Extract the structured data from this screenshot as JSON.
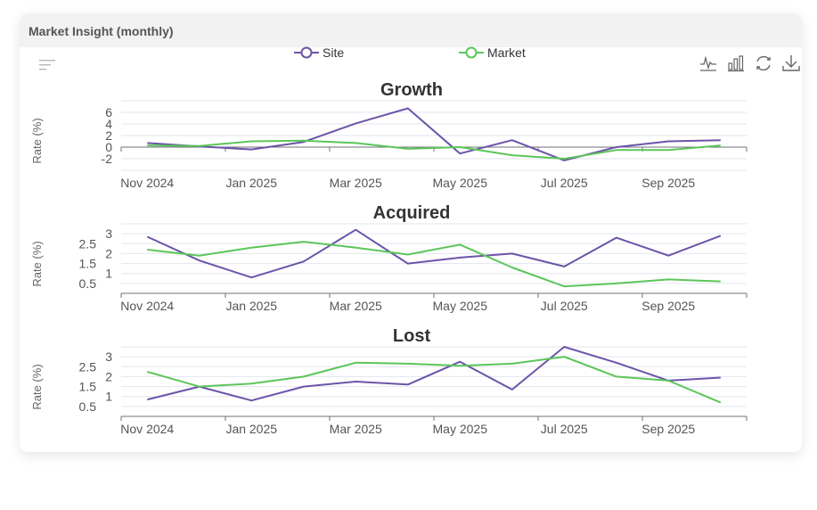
{
  "card": {
    "title": "Market Insight (monthly)"
  },
  "legend": [
    {
      "name": "Site",
      "color": "#6c54a8"
    },
    {
      "name": "Market",
      "color": "#5cc65a"
    }
  ],
  "toolbar": {
    "icons": [
      "line-chart-icon",
      "bar-chart-icon",
      "refresh-icon",
      "download-icon"
    ],
    "menu_icon": "filter-lines-icon"
  },
  "chart_data": [
    {
      "type": "line",
      "title": "Growth",
      "ylabel": "Rate (%)",
      "ylim": [
        -4,
        8
      ],
      "yticks": [
        -2,
        0,
        2,
        4,
        6
      ],
      "ytick_labels": [
        "-2",
        "0",
        "2",
        "4",
        "6"
      ],
      "grid": true,
      "categories": [
        "Nov 2024",
        "Dec 2024",
        "Jan 2025",
        "Feb 2025",
        "Mar 2025",
        "Apr 2025",
        "May 2025",
        "Jun 2025",
        "Jul 2025",
        "Aug 2025",
        "Sep 2025",
        "Oct 2025"
      ],
      "xtick_labels": [
        "Nov 2024",
        "Jan 2025",
        "Mar 2025",
        "May 2025",
        "Jul 2025",
        "Sep 2025"
      ],
      "series": [
        {
          "name": "Site",
          "values": [
            0.7,
            0.1,
            -0.4,
            0.9,
            4.1,
            6.7,
            -1.1,
            1.2,
            -2.3,
            0.0,
            1.0,
            1.2
          ]
        },
        {
          "name": "Market",
          "values": [
            0.3,
            0.2,
            1.0,
            1.1,
            0.7,
            -0.3,
            0.0,
            -1.4,
            -2.0,
            -0.5,
            -0.5,
            0.3
          ]
        }
      ]
    },
    {
      "type": "line",
      "title": "Acquired",
      "ylabel": "Rate (%)",
      "ylim": [
        0,
        3.5
      ],
      "yticks": [
        0.5,
        1,
        1.5,
        2,
        2.5,
        3
      ],
      "ytick_labels": [
        "0.5",
        "1",
        "1.5",
        "2",
        "2.5",
        "3"
      ],
      "grid": true,
      "categories": [
        "Nov 2024",
        "Dec 2024",
        "Jan 2025",
        "Feb 2025",
        "Mar 2025",
        "Apr 2025",
        "May 2025",
        "Jun 2025",
        "Jul 2025",
        "Aug 2025",
        "Sep 2025",
        "Oct 2025"
      ],
      "xtick_labels": [
        "Nov 2024",
        "Jan 2025",
        "Mar 2025",
        "May 2025",
        "Jul 2025",
        "Sep 2025"
      ],
      "series": [
        {
          "name": "Site",
          "values": [
            2.85,
            1.65,
            0.8,
            1.6,
            3.2,
            1.5,
            1.8,
            2.0,
            1.35,
            2.8,
            1.9,
            2.9
          ]
        },
        {
          "name": "Market",
          "values": [
            2.2,
            1.9,
            2.3,
            2.6,
            2.3,
            1.95,
            2.45,
            1.3,
            0.35,
            0.5,
            0.7,
            0.6
          ]
        }
      ]
    },
    {
      "type": "line",
      "title": "Lost",
      "ylabel": "Rate (%)",
      "ylim": [
        0,
        3.5
      ],
      "yticks": [
        0.5,
        1,
        1.5,
        2,
        2.5,
        3
      ],
      "ytick_labels": [
        "0.5",
        "1",
        "1.5",
        "2",
        "2.5",
        "3"
      ],
      "grid": true,
      "categories": [
        "Nov 2024",
        "Dec 2024",
        "Jan 2025",
        "Feb 2025",
        "Mar 2025",
        "Apr 2025",
        "May 2025",
        "Jun 2025",
        "Jul 2025",
        "Aug 2025",
        "Sep 2025",
        "Oct 2025"
      ],
      "xtick_labels": [
        "Nov 2024",
        "Jan 2025",
        "Mar 2025",
        "May 2025",
        "Jul 2025",
        "Sep 2025"
      ],
      "series": [
        {
          "name": "Site",
          "values": [
            0.85,
            1.5,
            0.8,
            1.5,
            1.75,
            1.6,
            2.75,
            1.35,
            3.5,
            2.7,
            1.8,
            1.95
          ]
        },
        {
          "name": "Market",
          "values": [
            2.25,
            1.5,
            1.65,
            2.0,
            2.7,
            2.65,
            2.55,
            2.65,
            3.0,
            2.0,
            1.8,
            0.7
          ]
        }
      ]
    }
  ]
}
